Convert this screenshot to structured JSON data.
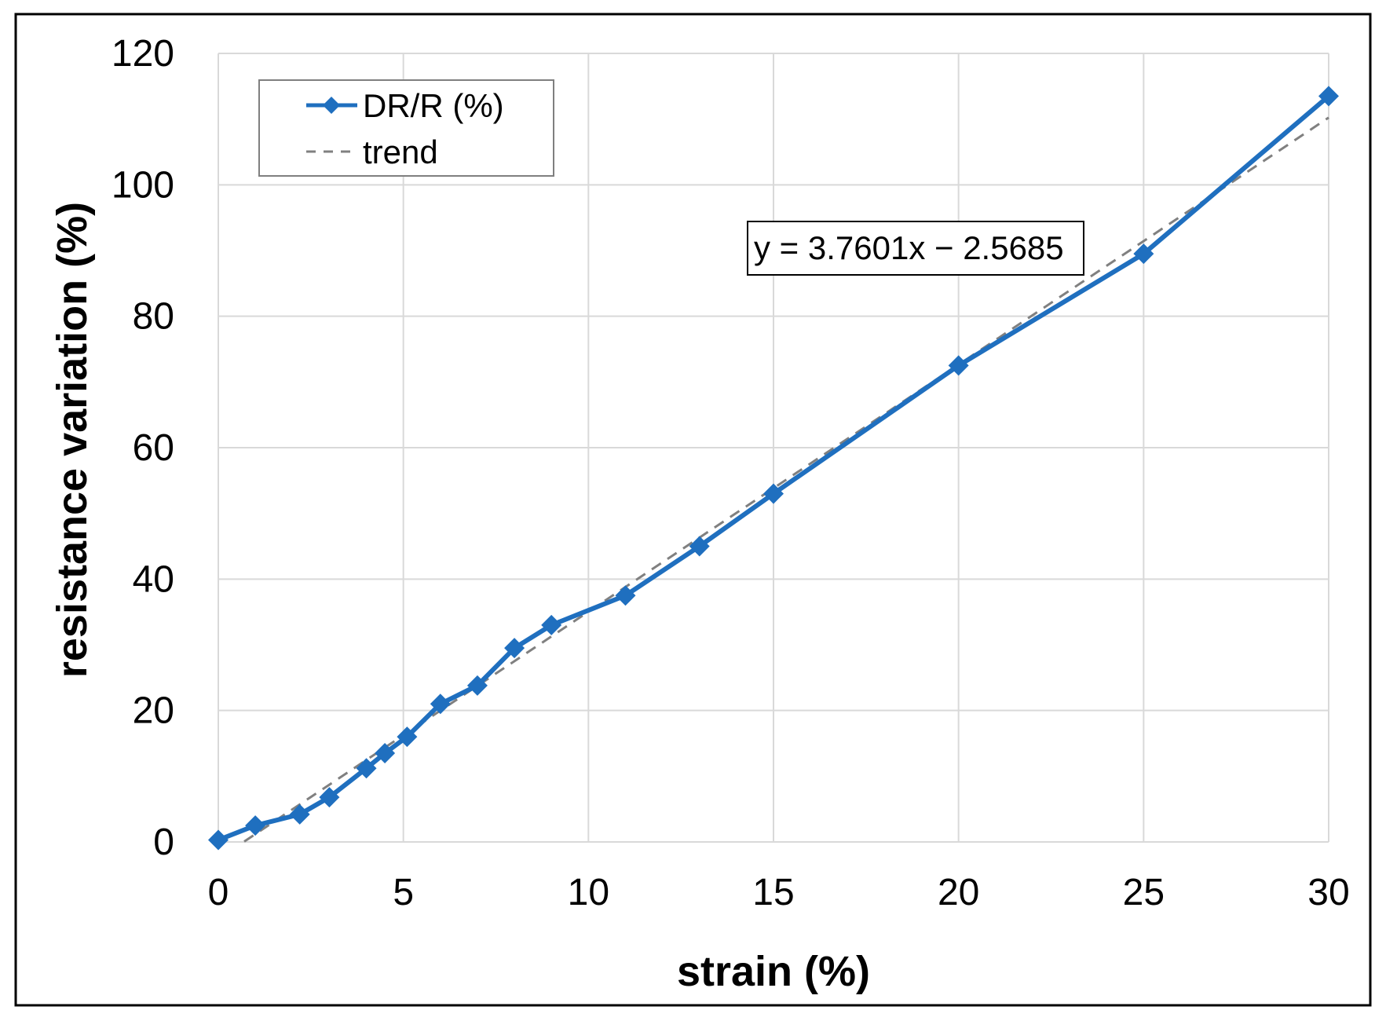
{
  "chart_data": {
    "type": "line",
    "xlabel": "strain (%)",
    "ylabel": "resistance variation (%)",
    "xlim": [
      0,
      30
    ],
    "ylim": [
      0,
      120
    ],
    "x_ticks": [
      0,
      5,
      10,
      15,
      20,
      25,
      30
    ],
    "y_ticks": [
      0,
      20,
      40,
      60,
      80,
      100,
      120
    ],
    "grid": true,
    "legend_position": "top-left",
    "series": [
      {
        "name": "DR/R (%)",
        "color": "#1f6fbf",
        "marker": "diamond",
        "style": "solid",
        "points": [
          {
            "x": 0,
            "y": 0.3
          },
          {
            "x": 1,
            "y": 2.5
          },
          {
            "x": 2.2,
            "y": 4.2
          },
          {
            "x": 3,
            "y": 6.8
          },
          {
            "x": 4,
            "y": 11.2
          },
          {
            "x": 4.5,
            "y": 13.5
          },
          {
            "x": 5.1,
            "y": 16.0
          },
          {
            "x": 6,
            "y": 21.0
          },
          {
            "x": 7,
            "y": 23.8
          },
          {
            "x": 8,
            "y": 29.5
          },
          {
            "x": 9,
            "y": 33.0
          },
          {
            "x": 11,
            "y": 37.5
          },
          {
            "x": 13,
            "y": 45.0
          },
          {
            "x": 15,
            "y": 53.0
          },
          {
            "x": 20,
            "y": 72.5
          },
          {
            "x": 25,
            "y": 89.5
          },
          {
            "x": 30,
            "y": 113.5
          }
        ]
      },
      {
        "name": "trend",
        "color": "#808080",
        "style": "dashed",
        "slope": 3.7601,
        "intercept": -2.5685,
        "x_range": [
          0.7,
          30
        ]
      }
    ],
    "annotations": [
      {
        "text": "y = 3.7601x − 2.5685",
        "x": 18.5,
        "y": 90.5
      }
    ]
  }
}
